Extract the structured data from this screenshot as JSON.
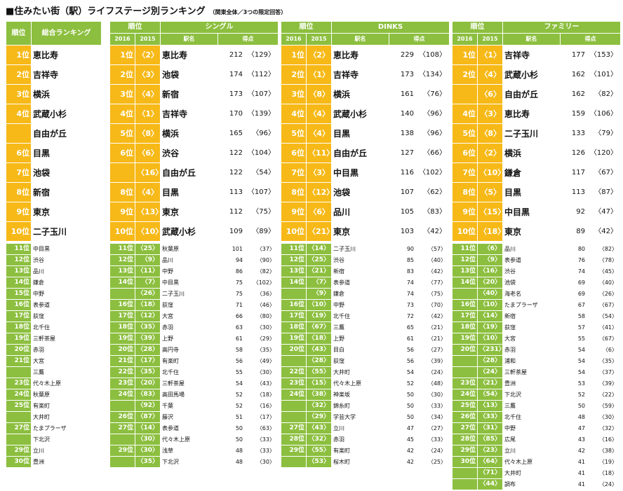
{
  "title": "■住みたい街（駅）ライフステージ別ランキング",
  "subtitle": "（関東全体／3つの限定回答）",
  "overall": {
    "header_rank": "順位",
    "header_name": "総合ランキング",
    "top": [
      [
        "1位",
        "恵比寿"
      ],
      [
        "2位",
        "吉祥寺"
      ],
      [
        "3位",
        "横浜"
      ],
      [
        "4位",
        "武蔵小杉"
      ],
      [
        "",
        "自由が丘"
      ],
      [
        "6位",
        "目黒"
      ],
      [
        "7位",
        "池袋"
      ],
      [
        "8位",
        "新宿"
      ],
      [
        "9位",
        "東京"
      ],
      [
        "10位",
        "二子玉川"
      ]
    ],
    "rest": [
      [
        "11位",
        "中目黒"
      ],
      [
        "12位",
        "渋谷"
      ],
      [
        "13位",
        "品川"
      ],
      [
        "14位",
        "鎌倉"
      ],
      [
        "15位",
        "中野"
      ],
      [
        "16位",
        "表参道"
      ],
      [
        "17位",
        "荻窪"
      ],
      [
        "18位",
        "北千住"
      ],
      [
        "19位",
        "三軒茶屋"
      ],
      [
        "20位",
        "赤羽"
      ],
      [
        "21位",
        "大宮"
      ],
      [
        "",
        "三鷹"
      ],
      [
        "23位",
        "代々木上原"
      ],
      [
        "24位",
        "秋葉原"
      ],
      [
        "25位",
        "有楽町"
      ],
      [
        "",
        "大井町"
      ],
      [
        "27位",
        "たまプラーザ"
      ],
      [
        "",
        "下北沢"
      ],
      [
        "29位",
        "立川"
      ],
      [
        "30位",
        "豊洲"
      ]
    ]
  },
  "groups": [
    {
      "name": "シングル",
      "h_rank": "順位",
      "y2016": "2016",
      "y2015": "2015",
      "h_station": "駅名",
      "h_score": "得点",
      "top": [
        [
          "1位",
          "〈2〉",
          "恵比寿",
          "212",
          "〈129〉"
        ],
        [
          "2位",
          "〈3〉",
          "池袋",
          "174",
          "〈112〉"
        ],
        [
          "3位",
          "〈4〉",
          "新宿",
          "173",
          "〈107〉"
        ],
        [
          "4位",
          "〈1〉",
          "吉祥寺",
          "170",
          "〈139〉"
        ],
        [
          "5位",
          "〈8〉",
          "横浜",
          "165",
          "〈96〉"
        ],
        [
          "6位",
          "〈6〉",
          "渋谷",
          "122",
          "〈104〉"
        ],
        [
          "",
          "〈16〉",
          "自由が丘",
          "122",
          "〈54〉"
        ],
        [
          "8位",
          "〈4〉",
          "目黒",
          "113",
          "〈107〉"
        ],
        [
          "9位",
          "〈13〉",
          "東京",
          "112",
          "〈75〉"
        ],
        [
          "10位",
          "〈10〉",
          "武蔵小杉",
          "109",
          "〈89〉"
        ]
      ],
      "rest": [
        [
          "11位",
          "〈25〉",
          "秋葉原",
          "101",
          "〈37〉"
        ],
        [
          "12位",
          "〈9〉",
          "品川",
          "94",
          "〈90〉"
        ],
        [
          "13位",
          "〈11〉",
          "中野",
          "86",
          "〈82〉"
        ],
        [
          "14位",
          "〈7〉",
          "中目黒",
          "75",
          "〈102〉"
        ],
        [
          "",
          "〈26〉",
          "二子玉川",
          "75",
          "〈36〉"
        ],
        [
          "16位",
          "〈18〉",
          "荻窪",
          "71",
          "〈46〉"
        ],
        [
          "17位",
          "〈12〉",
          "大宮",
          "66",
          "〈80〉"
        ],
        [
          "18位",
          "〈35〉",
          "赤羽",
          "63",
          "〈30〉"
        ],
        [
          "19位",
          "〈39〉",
          "上野",
          "61",
          "〈29〉"
        ],
        [
          "20位",
          "〈28〉",
          "高円寺",
          "58",
          "〈35〉"
        ],
        [
          "21位",
          "〈17〉",
          "有楽町",
          "56",
          "〈49〉"
        ],
        [
          "22位",
          "〈35〉",
          "北千住",
          "55",
          "〈30〉"
        ],
        [
          "23位",
          "〈20〉",
          "三軒茶屋",
          "54",
          "〈43〉"
        ],
        [
          "24位",
          "〈83〉",
          "高田馬場",
          "52",
          "〈18〉"
        ],
        [
          "",
          "〈92〉",
          "千葉",
          "52",
          "〈16〉"
        ],
        [
          "26位",
          "〈87〉",
          "藤沢",
          "51",
          "〈17〉"
        ],
        [
          "27位",
          "〈14〉",
          "表参道",
          "50",
          "〈63〉"
        ],
        [
          "",
          "〈30〉",
          "代々木上原",
          "50",
          "〈33〉"
        ],
        [
          "29位",
          "〈30〉",
          "浅草",
          "48",
          "〈33〉"
        ],
        [
          "",
          "〈35〉",
          "下北沢",
          "48",
          "〈30〉"
        ]
      ]
    },
    {
      "name": "DINKS",
      "h_rank": "順位",
      "y2016": "2016",
      "y2015": "2015",
      "h_station": "駅名",
      "h_score": "得点",
      "top": [
        [
          "1位",
          "〈2〉",
          "恵比寿",
          "229",
          "〈108〉"
        ],
        [
          "2位",
          "〈1〉",
          "吉祥寺",
          "173",
          "〈134〉"
        ],
        [
          "3位",
          "〈8〉",
          "横浜",
          "161",
          "〈76〉"
        ],
        [
          "4位",
          "〈4〉",
          "武蔵小杉",
          "140",
          "〈96〉"
        ],
        [
          "5位",
          "〈4〉",
          "目黒",
          "138",
          "〈96〉"
        ],
        [
          "6位",
          "〈11〉",
          "自由が丘",
          "127",
          "〈66〉"
        ],
        [
          "7位",
          "〈3〉",
          "中目黒",
          "116",
          "〈102〉"
        ],
        [
          "8位",
          "〈12〉",
          "池袋",
          "107",
          "〈62〉"
        ],
        [
          "9位",
          "〈6〉",
          "品川",
          "105",
          "〈83〉"
        ],
        [
          "10位",
          "〈21〉",
          "東京",
          "103",
          "〈42〉"
        ]
      ],
      "rest": [
        [
          "11位",
          "〈14〉",
          "二子玉川",
          "90",
          "〈57〉"
        ],
        [
          "12位",
          "〈25〉",
          "渋谷",
          "85",
          "〈40〉"
        ],
        [
          "13位",
          "〈21〉",
          "新宿",
          "83",
          "〈42〉"
        ],
        [
          "14位",
          "〈7〉",
          "表参道",
          "74",
          "〈77〉"
        ],
        [
          "",
          "〈9〉",
          "鎌倉",
          "74",
          "〈75〉"
        ],
        [
          "16位",
          "〈10〉",
          "中野",
          "73",
          "〈70〉"
        ],
        [
          "17位",
          "〈19〉",
          "北千住",
          "72",
          "〈42〉"
        ],
        [
          "18位",
          "〈67〉",
          "三鷹",
          "65",
          "〈21〉"
        ],
        [
          "19位",
          "〈18〉",
          "上野",
          "61",
          "〈21〉"
        ],
        [
          "20位",
          "〈43〉",
          "目白",
          "56",
          "〈27〉"
        ],
        [
          "",
          "〈28〉",
          "荻窪",
          "56",
          "〈39〉"
        ],
        [
          "22位",
          "〈55〉",
          "大井町",
          "54",
          "〈24〉"
        ],
        [
          "23位",
          "〈15〉",
          "代々木上原",
          "52",
          "〈48〉"
        ],
        [
          "24位",
          "〈38〉",
          "神楽坂",
          "50",
          "〈30〉"
        ],
        [
          "",
          "〈32〉",
          "錦糸町",
          "50",
          "〈33〉"
        ],
        [
          "",
          "〈29〉",
          "学芸大学",
          "50",
          "〈34〉"
        ],
        [
          "27位",
          "〈43〉",
          "立川",
          "47",
          "〈27〉"
        ],
        [
          "28位",
          "〈32〉",
          "赤羽",
          "45",
          "〈33〉"
        ],
        [
          "29位",
          "〈55〉",
          "有楽町",
          "42",
          "〈24〉"
        ],
        [
          "",
          "〈53〉",
          "桜木町",
          "42",
          "〈25〉"
        ]
      ]
    },
    {
      "name": "ファミリー",
      "h_rank": "順位",
      "y2016": "2016",
      "y2015": "2015",
      "h_station": "駅名",
      "h_score": "得点",
      "top": [
        [
          "1位",
          "〈1〉",
          "吉祥寺",
          "177",
          "〈153〉"
        ],
        [
          "2位",
          "〈4〉",
          "武蔵小杉",
          "162",
          "〈101〉"
        ],
        [
          "",
          "〈6〉",
          "自由が丘",
          "162",
          "〈82〉"
        ],
        [
          "4位",
          "〈3〉",
          "恵比寿",
          "159",
          "〈106〉"
        ],
        [
          "5位",
          "〈8〉",
          "二子玉川",
          "133",
          "〈79〉"
        ],
        [
          "6位",
          "〈2〉",
          "横浜",
          "126",
          "〈120〉"
        ],
        [
          "7位",
          "〈10〉",
          "鎌倉",
          "117",
          "〈67〉"
        ],
        [
          "8位",
          "〈5〉",
          "目黒",
          "113",
          "〈87〉"
        ],
        [
          "9位",
          "〈15〉",
          "中目黒",
          "92",
          "〈47〉"
        ],
        [
          "10位",
          "〈18〉",
          "東京",
          "89",
          "〈42〉"
        ]
      ],
      "rest": [
        [
          "11位",
          "〈6〉",
          "品川",
          "80",
          "〈82〉"
        ],
        [
          "12位",
          "〈9〉",
          "表参道",
          "76",
          "〈78〉"
        ],
        [
          "13位",
          "〈16〉",
          "渋谷",
          "74",
          "〈45〉"
        ],
        [
          "14位",
          "〈20〉",
          "池袋",
          "69",
          "〈40〉"
        ],
        [
          "",
          "〈40〉",
          "海老名",
          "69",
          "〈26〉"
        ],
        [
          "16位",
          "〈10〉",
          "たまプラーザ",
          "67",
          "〈67〉"
        ],
        [
          "17位",
          "〈14〉",
          "新宿",
          "58",
          "〈54〉"
        ],
        [
          "18位",
          "〈19〉",
          "荻窪",
          "57",
          "〈41〉"
        ],
        [
          "19位",
          "〈10〉",
          "大宮",
          "55",
          "〈67〉"
        ],
        [
          "20位",
          "〈231〉",
          "赤羽",
          "54",
          "〈6〉"
        ],
        [
          "",
          "〈28〉",
          "浦和",
          "54",
          "〈35〉"
        ],
        [
          "",
          "〈24〉",
          "三軒茶屋",
          "54",
          "〈37〉"
        ],
        [
          "23位",
          "〈21〉",
          "豊洲",
          "53",
          "〈39〉"
        ],
        [
          "24位",
          "〈54〉",
          "下北沢",
          "52",
          "〈22〉"
        ],
        [
          "25位",
          "〈13〉",
          "三鷹",
          "50",
          "〈59〉"
        ],
        [
          "26位",
          "〈33〉",
          "北千住",
          "48",
          "〈30〉"
        ],
        [
          "27位",
          "〈31〉",
          "中野",
          "47",
          "〈32〉"
        ],
        [
          "28位",
          "〈85〉",
          "広尾",
          "43",
          "〈16〉"
        ],
        [
          "29位",
          "〈23〉",
          "立川",
          "42",
          "〈38〉"
        ],
        [
          "30位",
          "〈64〉",
          "代々木上原",
          "41",
          "〈19〉"
        ],
        [
          "",
          "〈71〉",
          "大井町",
          "41",
          "〈18〉"
        ],
        [
          "",
          "〈44〉",
          "調布",
          "41",
          "〈24〉"
        ]
      ]
    }
  ]
}
